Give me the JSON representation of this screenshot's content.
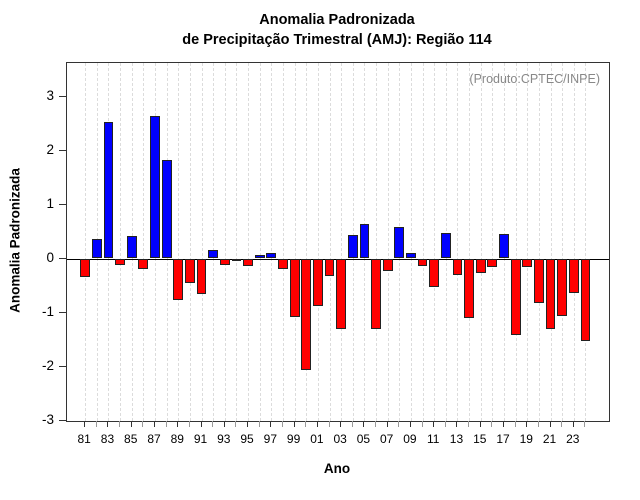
{
  "title_line1": "Anomalia Padronizada",
  "title_line2": "de Precipitação Trimestral (AMJ): Região 114",
  "annotation": "(Produto:CPTEC/INPE)",
  "colors": {
    "positive_bar": "#0000ff",
    "negative_bar": "#ff0000",
    "annotation_text": "#888888",
    "gridline": "#dcdcdc"
  },
  "chart_data": {
    "type": "bar",
    "title": "Anomalia Padronizada de Precipitação Trimestral (AMJ): Região 114",
    "xlabel": "Ano",
    "ylabel": "Anomalia Padronizada",
    "ylim": [
      -3,
      3.6
    ],
    "yticks": [
      -3,
      -2,
      -1,
      0,
      1,
      2,
      3
    ],
    "grid": "vertical-dashed",
    "legend": "none",
    "positive_color": "blue",
    "negative_color": "red",
    "categories": [
      "81",
      "82",
      "83",
      "84",
      "85",
      "86",
      "87",
      "88",
      "89",
      "90",
      "91",
      "92",
      "93",
      "94",
      "95",
      "96",
      "97",
      "98",
      "99",
      "00",
      "01",
      "02",
      "03",
      "04",
      "05",
      "06",
      "07",
      "08",
      "09",
      "10",
      "11",
      "12",
      "13",
      "14",
      "15",
      "16",
      "17",
      "18",
      "19",
      "20",
      "21",
      "22",
      "23",
      "24"
    ],
    "values": [
      -0.35,
      0.37,
      2.53,
      -0.12,
      0.42,
      -0.2,
      2.63,
      1.83,
      -0.76,
      -0.45,
      -0.66,
      0.15,
      -0.12,
      -0.05,
      -0.13,
      0.06,
      0.1,
      -0.2,
      -1.09,
      -2.07,
      -0.88,
      -0.32,
      -1.3,
      0.44,
      0.64,
      -1.3,
      -0.24,
      0.59,
      0.1,
      -0.13,
      -0.53,
      0.47,
      -0.3,
      -1.1,
      -0.27,
      -0.15,
      0.45,
      -1.42,
      -0.15,
      -0.82,
      -1.3,
      -1.06,
      -0.64,
      -1.52
    ],
    "xtick_labeled_years": [
      "81",
      "83",
      "85",
      "87",
      "89",
      "91",
      "93",
      "95",
      "97",
      "99",
      "01",
      "03",
      "05",
      "07",
      "09",
      "11",
      "13",
      "15",
      "17",
      "19",
      "21",
      "23"
    ]
  }
}
